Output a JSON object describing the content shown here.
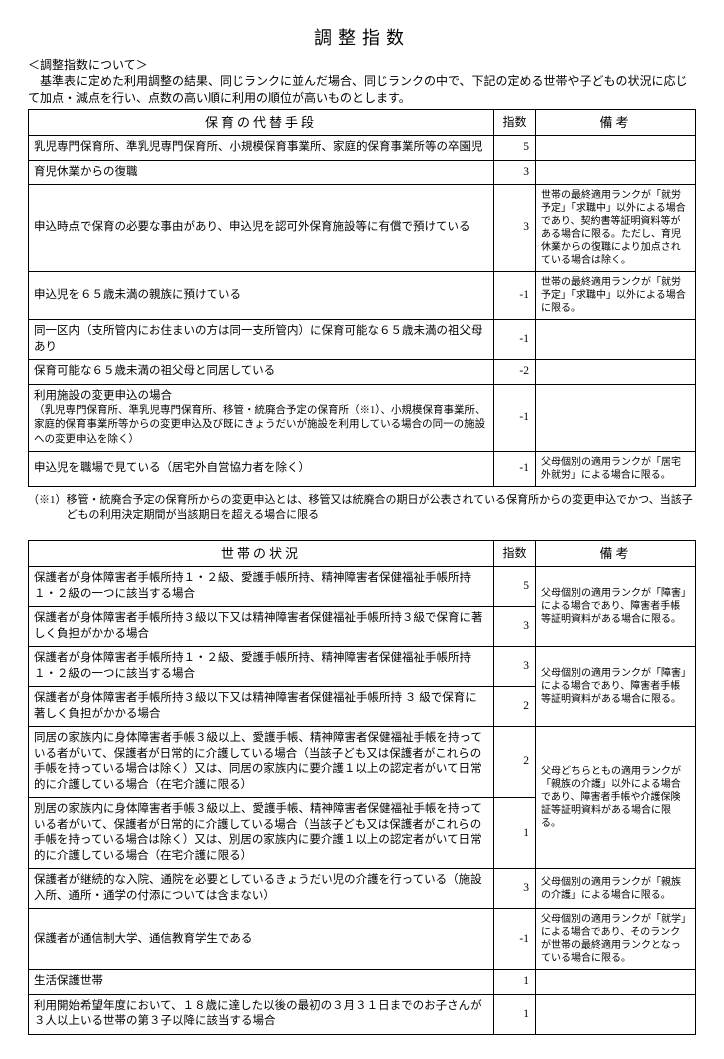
{
  "title": "調整指数",
  "intro": {
    "heading": "＜調整指数について＞",
    "body": "基準表に定めた利用調整の結果、同じランクに並んだ場合、同じランクの中で、下記の定める世帯や子どもの状況に応じて加点・減点を行い、点数の高い順に利用の順位が高いものとします。"
  },
  "table1": {
    "headers": {
      "desc": "保育の代替手段",
      "num": "指数",
      "note": "備考"
    },
    "rows": [
      {
        "desc": "乳児専門保育所、準乳児専門保育所、小規模保育事業所、家庭的保育事業所等の卒園児",
        "num": "5",
        "note": ""
      },
      {
        "desc": "育児休業からの復職",
        "num": "3",
        "note": ""
      },
      {
        "desc": "申込時点で保育の必要な事由があり、申込児を認可外保育施設等に有償で預けている",
        "num": "3",
        "note": "世帯の最終適用ランクが「就労予定」「求職中」以外による場合であり、契約書等証明資料等がある場合に限る。ただし、育児休業からの復職により加点されている場合は除く。"
      },
      {
        "desc": "申込児を６５歳未満の親族に預けている",
        "num": "-1",
        "note": "世帯の最終適用ランクが「就労予定」「求職中」以外による場合に限る。"
      },
      {
        "desc": "同一区内（支所管内にお住まいの方は同一支所管内）に保育可能な６５歳未満の祖父母あり",
        "num": "-1",
        "note": ""
      },
      {
        "desc": "保育可能な６５歳未満の祖父母と同居している",
        "num": "-2",
        "note": ""
      },
      {
        "desc": "利用施設の変更申込の場合",
        "desc2": "（乳児専門保育所、準乳児専門保育所、移管・統廃合予定の保育所（※1）、小規模保育事業所、家庭的保育事業所等からの変更申込及び既にきょうだいが施設を利用している場合の同一の施設への変更申込を除く）",
        "num": "-1",
        "note": ""
      },
      {
        "desc": "申込児を職場で見ている（居宅外自営協力者を除く）",
        "num": "-1",
        "note": "父母個別の適用ランクが「居宅外就労」による場合に限る。"
      }
    ]
  },
  "footnote1": "（※1）移管・統廃合予定の保育所からの変更申込とは、移管又は統廃合の期日が公表されている保育所からの変更申込でかつ、当該子どもの利用決定期間が当該期日を超える場合に限る",
  "table2": {
    "headers": {
      "desc": "世帯の状況",
      "num": "指数",
      "note": "備考"
    },
    "noteGroups": [
      "父母個別の適用ランクが「障害」による場合であり、障害者手帳等証明資料がある場合に限る。",
      "父母個別の適用ランクが「障害」による場合であり、障害者手帳等証明資料がある場合に限る。",
      "父母どちらともの適用ランクが「親族の介護」以外による場合であり、障害者手帳や介護保険証等証明資料がある場合に限る。"
    ],
    "rows": [
      {
        "desc": "保護者が身体障害者手帳所持１・２級、愛護手帳所持、精神障害者保健福祉手帳所持１・２級の一つに該当する場合",
        "num": "5"
      },
      {
        "desc": "保護者が身体障害者手帳所持３級以下又は精神障害者保健福祉手帳所持３級で保育に著しく負担がかかる場合",
        "num": "3"
      },
      {
        "desc": "保護者が身体障害者手帳所持１・２級、愛護手帳所持、精神障害者保健福祉手帳所持１・２級の一つに該当する場合",
        "num": "3"
      },
      {
        "desc": "保護者が身体障害者手帳所持３級以下又は精神障害者保健福祉手帳所持 ３ 級で保育に著しく負担がかかる場合",
        "num": "2"
      },
      {
        "desc": "同居の家族内に身体障害者手帳３級以上、愛護手帳、精神障害者保健福祉手帳を持っている者がいて、保護者が日常的に介護している場合（当該子ども又は保護者がこれらの手帳を持っている場合は除く）又は、同居の家族内に要介護１以上の認定者がいて日常的に介護している場合（在宅介護に限る）",
        "num": "2"
      },
      {
        "desc": "別居の家族内に身体障害者手帳３級以上、愛護手帳、精神障害者保健福祉手帳を持っている者がいて、保護者が日常的に介護している場合（当該子ども又は保護者がこれらの手帳を持っている場合は除く）又は、別居の家族内に要介護１以上の認定者がいて日常的に介護している場合（在宅介護に限る）",
        "num": "1"
      },
      {
        "desc": "保護者が継続的な入院、通院を必要としているきょうだい児の介護を行っている（施設入所、通所・通学の付添については含まない）",
        "num": "3",
        "note": "父母個別の適用ランクが「親族の介護」による場合に限る。"
      },
      {
        "desc": "保護者が通信制大学、通信教育学生である",
        "num": "-1",
        "note": "父母個別の適用ランクが「就学」による場合であり、そのランクが世帯の最終適用ランクとなっている場合に限る。"
      },
      {
        "desc": "生活保護世帯",
        "num": "1",
        "note": ""
      },
      {
        "desc": "利用開始希望年度において、１８歳に達した以後の最初の３月３１日までのお子さんが３人以上いる世帯の第３子以降に該当する場合",
        "num": "1",
        "note": ""
      }
    ]
  }
}
